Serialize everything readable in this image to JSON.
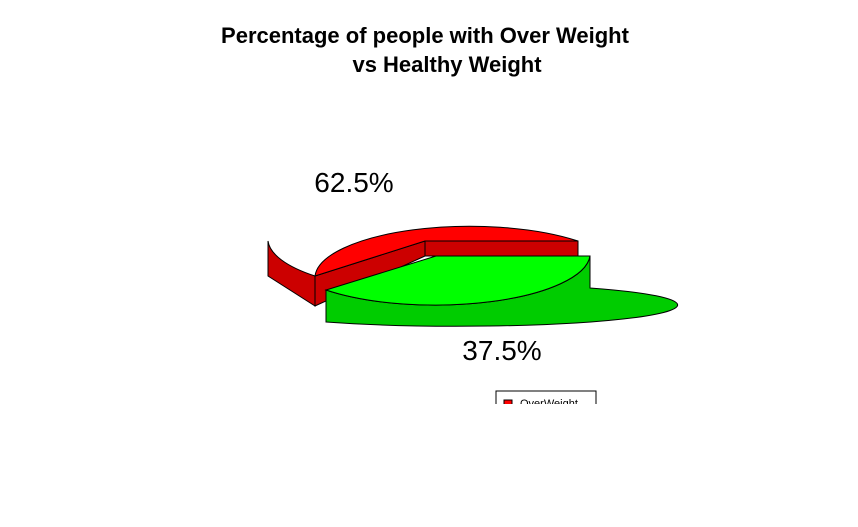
{
  "chart_data": {
    "type": "pie",
    "style": "3d-exploded",
    "title_lines": [
      "Percentage of people with Over Weight",
      "vs Healthy Weight"
    ],
    "slices": [
      {
        "label": "OverWeight",
        "value": 62.5,
        "label_text": "62.5%",
        "color": "#ff0000",
        "side_color": "#cc0000"
      },
      {
        "label": "",
        "value": 37.5,
        "label_text": "37.5%",
        "color": "#00ff00",
        "side_color": "#00cc00"
      }
    ],
    "legend": {
      "placement": "bottom-right",
      "entries": [
        "OverWeight"
      ]
    }
  }
}
